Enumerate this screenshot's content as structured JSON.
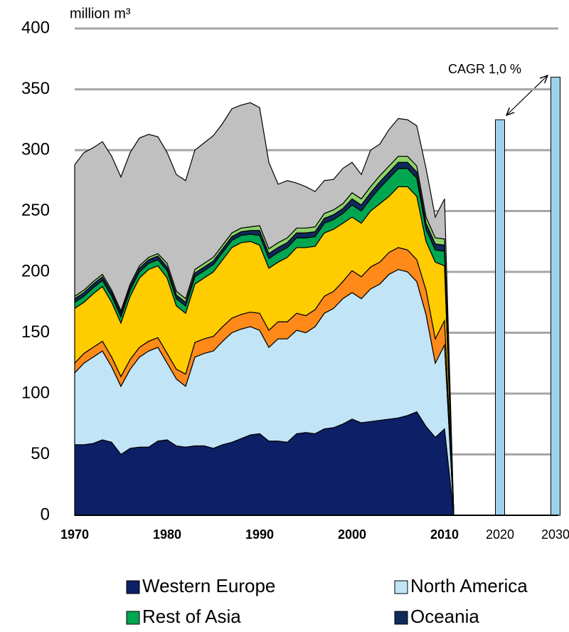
{
  "chart_data": {
    "type": "area",
    "y_label": "million m³",
    "annotation": "CAGR 1,0 %",
    "categories": [
      "1970",
      null,
      null,
      null,
      null,
      null,
      null,
      null,
      null,
      null,
      "1980",
      null,
      null,
      null,
      null,
      null,
      null,
      null,
      null,
      null,
      "1990",
      null,
      null,
      null,
      null,
      null,
      null,
      null,
      null,
      null,
      "2000",
      null,
      null,
      null,
      null,
      null,
      null,
      null,
      null,
      null,
      "2010",
      null,
      null,
      null,
      null,
      null,
      "2020",
      null,
      null,
      null,
      null,
      null,
      "2030"
    ],
    "ylim": [
      0,
      400
    ],
    "yticks": [
      0,
      50,
      100,
      150,
      200,
      250,
      300,
      350,
      400
    ],
    "grid": true,
    "series": [
      {
        "name": "Western Europe",
        "color": "#0d1f66",
        "values": [
          58,
          58,
          59,
          62,
          60,
          50,
          55,
          56,
          56,
          61,
          62,
          57,
          56,
          57,
          57,
          55,
          58,
          60,
          63,
          66,
          67,
          61,
          61,
          60,
          67,
          68,
          67,
          71,
          72,
          75,
          79,
          76,
          77,
          78,
          79,
          80,
          82,
          85,
          73,
          64,
          71,
          0,
          null,
          null,
          null,
          null,
          null,
          null,
          null,
          null,
          null,
          null,
          null
        ]
      },
      {
        "name": "North America",
        "color": "#c1e4f7",
        "values": [
          59,
          67,
          71,
          73,
          62,
          56,
          65,
          74,
          79,
          77,
          63,
          55,
          50,
          73,
          76,
          80,
          85,
          90,
          90,
          89,
          85,
          77,
          84,
          85,
          85,
          82,
          88,
          95,
          98,
          103,
          104,
          102,
          109,
          112,
          119,
          122,
          118,
          107,
          92,
          61,
          69,
          0,
          null,
          null,
          null,
          null,
          null,
          null,
          null,
          null,
          null,
          null,
          null
        ]
      },
      {
        "color": "#ff8a1a",
        "values": [
          8,
          8,
          8,
          8,
          8,
          8,
          8,
          8,
          8,
          8,
          8,
          8,
          10,
          12,
          12,
          12,
          12,
          12,
          12,
          12,
          14,
          14,
          14,
          14,
          14,
          14,
          14,
          14,
          14,
          14,
          18,
          18,
          18,
          18,
          18,
          18,
          18,
          18,
          20,
          20,
          20,
          0,
          null,
          null,
          null,
          null,
          null,
          null,
          null,
          null,
          null,
          null,
          null
        ]
      },
      {
        "color": "#ffcc00",
        "values": [
          45,
          42,
          44,
          45,
          45,
          44,
          52,
          57,
          59,
          59,
          62,
          52,
          50,
          48,
          50,
          53,
          55,
          58,
          59,
          58,
          56,
          51,
          49,
          53,
          54,
          56,
          52,
          52,
          51,
          48,
          44,
          44,
          46,
          48,
          46,
          50,
          52,
          52,
          40,
          63,
          45,
          0,
          null,
          null,
          null,
          null,
          null,
          null,
          null,
          null,
          null,
          null,
          null
        ]
      },
      {
        "name": "Rest of Asia",
        "color": "#00a650",
        "values": [
          5,
          5,
          5,
          5,
          5,
          5,
          5,
          5,
          5,
          5,
          6,
          6,
          6,
          6,
          6,
          6,
          6,
          6,
          6,
          6,
          8,
          8,
          8,
          8,
          8,
          8,
          8,
          8,
          8,
          8,
          10,
          10,
          10,
          13,
          15,
          15,
          15,
          15,
          10,
          10,
          12,
          0,
          null,
          null,
          null,
          null,
          null,
          null,
          null,
          null,
          null,
          null,
          null
        ]
      },
      {
        "name": "Oceania",
        "color": "#102a5c",
        "values": [
          3,
          3,
          3,
          3,
          3,
          3,
          3,
          3,
          3,
          3,
          3,
          3,
          3,
          3,
          3,
          3,
          3,
          3,
          3,
          3,
          4,
          4,
          4,
          4,
          4,
          4,
          4,
          4,
          4,
          4,
          5,
          5,
          5,
          5,
          5,
          5,
          5,
          5,
          5,
          5,
          5,
          0,
          null,
          null,
          null,
          null,
          null,
          null,
          null,
          null,
          null,
          null,
          null
        ]
      },
      {
        "color": "#8ed36b",
        "values": [
          2,
          2,
          2,
          2,
          2,
          2,
          2,
          2,
          2,
          2,
          3,
          3,
          3,
          3,
          3,
          3,
          3,
          3,
          3,
          3,
          4,
          4,
          4,
          4,
          4,
          4,
          4,
          4,
          4,
          4,
          5,
          5,
          5,
          5,
          5,
          5,
          5,
          5,
          5,
          5,
          5,
          0,
          null,
          null,
          null,
          null,
          null,
          null,
          null,
          null,
          null,
          null,
          null
        ]
      },
      {
        "color": "#c0c0c0",
        "values": [
          108,
          113,
          110,
          109,
          110,
          110,
          108,
          105,
          101,
          96,
          91,
          96,
          97,
          98,
          99,
          100,
          100,
          102,
          101,
          102,
          97,
          71,
          48,
          47,
          37,
          34,
          29,
          27,
          25,
          29,
          25,
          20,
          30,
          26,
          30,
          31,
          30,
          33,
          40,
          17,
          33,
          0,
          null,
          null,
          null,
          null,
          null,
          null,
          null,
          null,
          null,
          null,
          null
        ]
      },
      {
        "type": "bar",
        "color": "#9fd0ea",
        "values": [
          null,
          null,
          null,
          null,
          null,
          null,
          null,
          null,
          null,
          null,
          null,
          null,
          null,
          null,
          null,
          null,
          null,
          null,
          null,
          null,
          null,
          null,
          null,
          null,
          null,
          null,
          null,
          null,
          null,
          null,
          null,
          null,
          null,
          null,
          null,
          null,
          null,
          null,
          null,
          null,
          null,
          null,
          null,
          null,
          null,
          null,
          325,
          null,
          null,
          null,
          null,
          null,
          360
        ]
      }
    ]
  }
}
